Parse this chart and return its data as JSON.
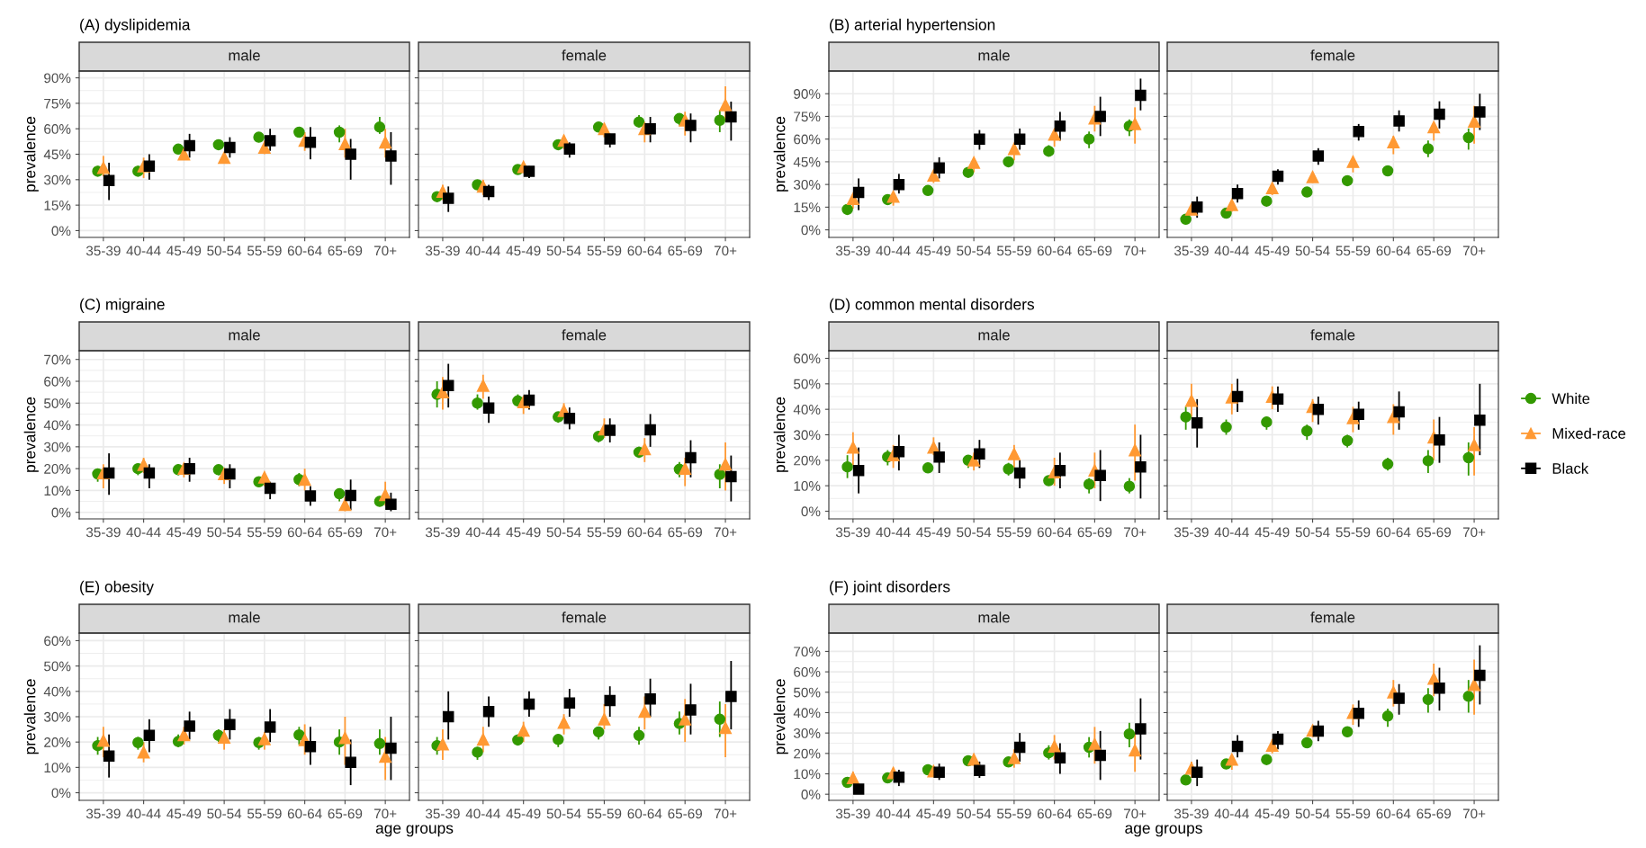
{
  "chart_data": [
    {
      "type": "scatter",
      "title": "(A) dyslipidemia",
      "subtitle": "male",
      "ylabel": "prevalence",
      "categories": [
        "35-39",
        "40-44",
        "45-49",
        "50-54",
        "55-59",
        "60-64",
        "65-69",
        "70+"
      ],
      "ylim": [
        -4,
        94
      ],
      "yticks": [
        {
          "value": 0,
          "label": "0%"
        },
        {
          "value": 15,
          "label": "15%"
        },
        {
          "value": 30,
          "label": "30%"
        },
        {
          "value": 45,
          "label": "45%"
        },
        {
          "value": 60,
          "label": "60%"
        },
        {
          "value": 75,
          "label": "75%"
        },
        {
          "value": 90,
          "label": "90%"
        }
      ],
      "grid": true,
      "series": [
        {
          "color": "#339900",
          "marker": "circle",
          "values": [
            35,
            35,
            48,
            50.6,
            55,
            58,
            58,
            61
          ],
          "errors": [
            [
              33,
              38
            ],
            [
              33,
              38
            ],
            [
              46,
              50
            ],
            [
              48,
              53
            ],
            [
              53,
              57
            ],
            [
              55,
              61
            ],
            [
              52,
              62
            ],
            [
              57,
              67
            ]
          ]
        },
        {
          "color": "#ff9933",
          "marker": "triangle",
          "values": [
            37,
            38,
            45,
            43,
            49,
            53,
            51,
            52
          ],
          "errors": [
            [
              32,
              44
            ],
            [
              31,
              43
            ],
            [
              42,
              48
            ],
            [
              40,
              46
            ],
            [
              45,
              53
            ],
            [
              47,
              58
            ],
            [
              43,
              60
            ],
            [
              43,
              60
            ]
          ]
        },
        {
          "color": "#000000",
          "marker": "square",
          "values": [
            29.5,
            38,
            50,
            49,
            53,
            52,
            45,
            44
          ],
          "errors": [
            [
              18,
              40
            ],
            [
              30,
              45
            ],
            [
              43,
              57
            ],
            [
              43,
              55
            ],
            [
              47,
              60
            ],
            [
              42,
              61
            ],
            [
              30,
              54
            ],
            [
              27,
              58
            ]
          ]
        }
      ]
    },
    {
      "type": "scatter",
      "subtitle": "female",
      "categories": [
        "35-39",
        "40-44",
        "45-49",
        "50-54",
        "55-59",
        "60-64",
        "65-69",
        "70+"
      ],
      "ylim": [
        -4,
        94
      ],
      "yticks": [
        {
          "value": 0,
          "label": null
        },
        {
          "value": 15,
          "label": null
        },
        {
          "value": 30,
          "label": null
        },
        {
          "value": 45,
          "label": null
        },
        {
          "value": 60,
          "label": null
        },
        {
          "value": 75,
          "label": null
        },
        {
          "value": 90,
          "label": null
        }
      ],
      "tick_labels": "x",
      "grid": true,
      "series": [
        {
          "color": "#339900",
          "marker": "circle",
          "values": [
            20,
            27,
            36,
            50.6,
            61,
            64,
            66,
            65
          ],
          "errors": [
            [
              17,
              22
            ],
            [
              25,
              29
            ],
            [
              34,
              38
            ],
            [
              48,
              53
            ],
            [
              59,
              63
            ],
            [
              61,
              68
            ],
            [
              62,
              69
            ],
            [
              58,
              71
            ]
          ]
        },
        {
          "color": "#ff9933",
          "marker": "triangle",
          "values": [
            23,
            26,
            37.6,
            53,
            60,
            60,
            65,
            74
          ],
          "errors": [
            [
              18,
              27
            ],
            [
              21,
              30
            ],
            [
              34,
              40
            ],
            [
              48,
              56
            ],
            [
              55,
              63
            ],
            [
              52,
              64
            ],
            [
              56,
              70
            ],
            [
              65,
              85
            ]
          ]
        },
        {
          "color": "#000000",
          "marker": "square",
          "values": [
            19,
            23,
            35,
            48,
            54,
            60,
            62,
            67
          ],
          "errors": [
            [
              11,
              26
            ],
            [
              18,
              27
            ],
            [
              31,
              38
            ],
            [
              43,
              52
            ],
            [
              49,
              57
            ],
            [
              52,
              67
            ],
            [
              52,
              69
            ],
            [
              53,
              76
            ]
          ]
        }
      ]
    },
    {
      "type": "scatter",
      "title": "(B) arterial hypertension",
      "subtitle": "male",
      "ylabel": "prevalence",
      "categories": [
        "35-39",
        "40-44",
        "45-49",
        "50-54",
        "55-59",
        "60-64",
        "65-69",
        "70+"
      ],
      "ylim": [
        -5,
        105
      ],
      "yticks": [
        {
          "value": 0,
          "label": "0%"
        },
        {
          "value": 15,
          "label": "15%"
        },
        {
          "value": 30,
          "label": "30%"
        },
        {
          "value": 45,
          "label": "45%"
        },
        {
          "value": 60,
          "label": "60%"
        },
        {
          "value": 75,
          "label": "75%"
        },
        {
          "value": 90,
          "label": "90%"
        }
      ],
      "grid": true,
      "series": [
        {
          "color": "#339900",
          "marker": "circle",
          "values": [
            13.5,
            20,
            26,
            38,
            45,
            52,
            60,
            68.6
          ],
          "errors": [
            [
              11,
              16
            ],
            [
              18,
              22
            ],
            [
              24,
              28
            ],
            [
              36,
              40
            ],
            [
              42,
              48
            ],
            [
              49,
              56
            ],
            [
              54,
              65
            ],
            [
              62,
              73
            ]
          ]
        },
        {
          "color": "#ff9933",
          "marker": "triangle",
          "values": [
            20.5,
            22,
            36,
            44.5,
            53.6,
            63,
            73.7,
            70
          ],
          "errors": [
            [
              14,
              24
            ],
            [
              16,
              24
            ],
            [
              31,
              39
            ],
            [
              38,
              47
            ],
            [
              46,
              56
            ],
            [
              55,
              66
            ],
            [
              65,
              82
            ],
            [
              57,
              81
            ]
          ]
        },
        {
          "color": "#000000",
          "marker": "square",
          "values": [
            24.7,
            30,
            41,
            60,
            60,
            68.6,
            75,
            89
          ],
          "errors": [
            [
              13,
              34
            ],
            [
              24,
              37
            ],
            [
              34,
              48
            ],
            [
              53,
              66
            ],
            [
              53,
              67
            ],
            [
              59,
              78
            ],
            [
              62,
              88
            ],
            [
              79,
              100
            ]
          ]
        }
      ]
    },
    {
      "type": "scatter",
      "subtitle": "female",
      "categories": [
        "35-39",
        "40-44",
        "45-49",
        "50-54",
        "55-59",
        "60-64",
        "65-69",
        "70+"
      ],
      "ylim": [
        -5,
        105
      ],
      "yticks": [
        {
          "value": 0,
          "label": null
        },
        {
          "value": 15,
          "label": null
        },
        {
          "value": 30,
          "label": null
        },
        {
          "value": 45,
          "label": null
        },
        {
          "value": 60,
          "label": null
        },
        {
          "value": 75,
          "label": null
        },
        {
          "value": 90,
          "label": null
        }
      ],
      "tick_labels": "x",
      "grid": true,
      "series": [
        {
          "color": "#339900",
          "marker": "circle",
          "values": [
            7,
            11,
            19,
            25,
            32.5,
            39,
            53.6,
            61
          ],
          "errors": [
            [
              7,
              8
            ],
            [
              11,
              12
            ],
            [
              17,
              21
            ],
            [
              23,
              27
            ],
            [
              30,
              35
            ],
            [
              36,
              42
            ],
            [
              48,
              59
            ],
            [
              53,
              67
            ]
          ]
        },
        {
          "color": "#ff9933",
          "marker": "triangle",
          "values": [
            13.5,
            16.5,
            27.7,
            35,
            45,
            58,
            68,
            71.6
          ],
          "errors": [
            [
              10,
              16
            ],
            [
              12,
              19
            ],
            [
              23,
              30
            ],
            [
              31,
              37
            ],
            [
              38,
              47
            ],
            [
              50,
              62
            ],
            [
              59,
              71
            ],
            [
              57,
              82
            ]
          ]
        },
        {
          "color": "#000000",
          "marker": "square",
          "values": [
            15,
            24,
            35.5,
            48.8,
            65,
            72,
            76.5,
            78
          ],
          "errors": [
            [
              8,
              22
            ],
            [
              18,
              30
            ],
            [
              30,
              40
            ],
            [
              43,
              54
            ],
            [
              59,
              70
            ],
            [
              65,
              79
            ],
            [
              67,
              85
            ],
            [
              66,
              90
            ]
          ]
        }
      ]
    },
    {
      "type": "scatter",
      "title": "(C) migraine",
      "subtitle": "male",
      "ylabel": "prevalence",
      "categories": [
        "35-39",
        "40-44",
        "45-49",
        "50-54",
        "55-59",
        "60-64",
        "65-69",
        "70+"
      ],
      "ylim": [
        -3,
        74
      ],
      "yticks": [
        {
          "value": 0,
          "label": "0%"
        },
        {
          "value": 10,
          "label": "10%"
        },
        {
          "value": 20,
          "label": "20%"
        },
        {
          "value": 30,
          "label": "30%"
        },
        {
          "value": 40,
          "label": "40%"
        },
        {
          "value": 50,
          "label": "50%"
        },
        {
          "value": 60,
          "label": "60%"
        },
        {
          "value": 70,
          "label": "70%"
        }
      ],
      "grid": true,
      "series": [
        {
          "color": "#339900",
          "marker": "circle",
          "values": [
            17.6,
            20,
            19.5,
            19.5,
            14,
            15,
            8.5,
            5
          ],
          "errors": [
            [
              14,
              20
            ],
            [
              17,
              22
            ],
            [
              17,
              22
            ],
            [
              17,
              21
            ],
            [
              12,
              16
            ],
            [
              12,
              18
            ],
            [
              5,
              11
            ],
            [
              3,
              6
            ]
          ]
        },
        {
          "color": "#ff9933",
          "marker": "triangle",
          "values": [
            18,
            21.8,
            20,
            17.6,
            16,
            15,
            3.5,
            8
          ],
          "errors": [
            [
              11,
              22
            ],
            [
              18,
              25
            ],
            [
              16,
              22
            ],
            [
              13,
              20
            ],
            [
              12,
              18
            ],
            [
              10,
              20
            ],
            [
              0.5,
              7
            ],
            [
              3,
              14
            ]
          ]
        },
        {
          "color": "#000000",
          "marker": "square",
          "values": [
            18,
            18,
            20,
            17.6,
            11,
            7.5,
            7.7,
            3.7
          ],
          "errors": [
            [
              8,
              27
            ],
            [
              11,
              22
            ],
            [
              14,
              25
            ],
            [
              11,
              22
            ],
            [
              6,
              14
            ],
            [
              3,
              12
            ],
            [
              1,
              15
            ],
            [
              0.5,
              9
            ]
          ]
        }
      ]
    },
    {
      "type": "scatter",
      "subtitle": "female",
      "categories": [
        "35-39",
        "40-44",
        "45-49",
        "50-54",
        "55-59",
        "60-64",
        "65-69",
        "70+"
      ],
      "ylim": [
        -3,
        74
      ],
      "yticks": [
        {
          "value": 0,
          "label": null
        },
        {
          "value": 10,
          "label": null
        },
        {
          "value": 20,
          "label": null
        },
        {
          "value": 30,
          "label": null
        },
        {
          "value": 40,
          "label": null
        },
        {
          "value": 50,
          "label": null
        },
        {
          "value": 60,
          "label": null
        },
        {
          "value": 70,
          "label": null
        }
      ],
      "tick_labels": "x",
      "grid": true,
      "series": [
        {
          "color": "#339900",
          "marker": "circle",
          "values": [
            54,
            50,
            51,
            43.7,
            34.8,
            27.5,
            19.7,
            17.4
          ],
          "errors": [
            [
              48,
              60
            ],
            [
              47,
              54
            ],
            [
              49,
              54
            ],
            [
              41,
              46
            ],
            [
              32,
              37
            ],
            [
              25,
              30
            ],
            [
              16,
              23
            ],
            [
              11,
              22
            ]
          ]
        },
        {
          "color": "#ff9933",
          "marker": "triangle",
          "values": [
            55,
            58,
            50.5,
            46.5,
            38,
            29,
            20,
            22
          ],
          "errors": [
            [
              47,
              62
            ],
            [
              52,
              63
            ],
            [
              45,
              53
            ],
            [
              43,
              50
            ],
            [
              34,
              43
            ],
            [
              23,
              34
            ],
            [
              12,
              25
            ],
            [
              10,
              32
            ]
          ]
        },
        {
          "color": "#000000",
          "marker": "square",
          "values": [
            58,
            47.7,
            51.4,
            43,
            37.6,
            37.8,
            25,
            16.4
          ],
          "errors": [
            [
              48,
              68
            ],
            [
              41,
              53
            ],
            [
              47,
              56
            ],
            [
              38,
              48
            ],
            [
              32,
              43
            ],
            [
              30,
              45
            ],
            [
              16,
              33
            ],
            [
              5,
              26
            ]
          ]
        }
      ]
    },
    {
      "type": "scatter",
      "title": "(D) common mental disorders",
      "subtitle": "male",
      "ylabel": "prevalence",
      "categories": [
        "35-39",
        "40-44",
        "45-49",
        "50-54",
        "55-59",
        "60-64",
        "65-69",
        "70+"
      ],
      "ylim": [
        -3,
        63
      ],
      "yticks": [
        {
          "value": 0,
          "label": "0%"
        },
        {
          "value": 10,
          "label": "10%"
        },
        {
          "value": 20,
          "label": "20%"
        },
        {
          "value": 30,
          "label": "30%"
        },
        {
          "value": 40,
          "label": "40%"
        },
        {
          "value": 50,
          "label": "50%"
        },
        {
          "value": 60,
          "label": "60%"
        }
      ],
      "grid": true,
      "series": [
        {
          "color": "#339900",
          "marker": "circle",
          "values": [
            17.4,
            21.3,
            17,
            20,
            16.6,
            12,
            10.6,
            9.8
          ],
          "errors": [
            [
              13,
              22
            ],
            [
              18,
              24
            ],
            [
              15,
              19
            ],
            [
              17,
              22
            ],
            [
              14,
              19
            ],
            [
              10,
              14
            ],
            [
              7,
              13
            ],
            [
              7,
              13
            ]
          ]
        },
        {
          "color": "#ff9933",
          "marker": "triangle",
          "values": [
            25,
            22,
            25,
            20,
            22.5,
            15.3,
            16,
            24
          ],
          "errors": [
            [
              18,
              31
            ],
            [
              17,
              26
            ],
            [
              22,
              29
            ],
            [
              16,
              23
            ],
            [
              17,
              26
            ],
            [
              10,
              21
            ],
            [
              9,
              23
            ],
            [
              12,
              34
            ]
          ]
        },
        {
          "color": "#000000",
          "marker": "square",
          "values": [
            16,
            23.4,
            21.3,
            22.5,
            15,
            16,
            14,
            17.4
          ],
          "errors": [
            [
              7,
              25
            ],
            [
              16,
              30
            ],
            [
              15,
              27
            ],
            [
              17,
              28
            ],
            [
              9,
              20
            ],
            [
              9,
              23
            ],
            [
              4,
              24
            ],
            [
              5,
              30
            ]
          ]
        }
      ]
    },
    {
      "type": "scatter",
      "subtitle": "female",
      "categories": [
        "35-39",
        "40-44",
        "45-49",
        "50-54",
        "55-59",
        "60-64",
        "65-69",
        "70+"
      ],
      "ylim": [
        -3,
        63
      ],
      "yticks": [
        {
          "value": 0,
          "label": null
        },
        {
          "value": 10,
          "label": null
        },
        {
          "value": 20,
          "label": null
        },
        {
          "value": 30,
          "label": null
        },
        {
          "value": 40,
          "label": null
        },
        {
          "value": 50,
          "label": null
        },
        {
          "value": 60,
          "label": null
        }
      ],
      "tick_labels": "x",
      "grid": true,
      "legend": "right",
      "series": [
        {
          "name": "White",
          "color": "#339900",
          "marker": "circle",
          "values": [
            37,
            33,
            35,
            31.5,
            27.7,
            18.5,
            19.8,
            21
          ],
          "errors": [
            [
              32,
              41
            ],
            [
              30,
              36
            ],
            [
              32,
              37
            ],
            [
              28,
              34
            ],
            [
              25,
              30
            ],
            [
              16,
              21
            ],
            [
              15,
              24
            ],
            [
              14,
              27
            ]
          ]
        },
        {
          "name": "Mixed-race",
          "color": "#ff9933",
          "marker": "triangle",
          "values": [
            43.4,
            44.7,
            45,
            41,
            36.6,
            37,
            29,
            26
          ],
          "errors": [
            [
              37,
              50
            ],
            [
              38,
              50
            ],
            [
              40,
              49
            ],
            [
              35,
              44
            ],
            [
              31,
              41
            ],
            [
              30,
              42
            ],
            [
              20,
              36
            ],
            [
              14,
              33
            ]
          ]
        },
        {
          "name": "Black",
          "color": "#000000",
          "marker": "square",
          "values": [
            34.7,
            45,
            44,
            40,
            38,
            39,
            28,
            35.7
          ],
          "errors": [
            [
              25,
              44
            ],
            [
              39,
              52
            ],
            [
              39,
              49
            ],
            [
              34,
              45
            ],
            [
              32,
              43
            ],
            [
              32,
              47
            ],
            [
              19,
              37
            ],
            [
              22,
              50
            ]
          ]
        }
      ]
    },
    {
      "type": "scatter",
      "title": "(E) obesity",
      "subtitle": "male",
      "ylabel": "prevalence",
      "xlabel": "age groups",
      "categories": [
        "35-39",
        "40-44",
        "45-49",
        "50-54",
        "55-59",
        "60-64",
        "65-69",
        "70+"
      ],
      "ylim": [
        -3,
        63
      ],
      "yticks": [
        {
          "value": 0,
          "label": "0%"
        },
        {
          "value": 10,
          "label": "10%"
        },
        {
          "value": 20,
          "label": "20%"
        },
        {
          "value": 30,
          "label": "30%"
        },
        {
          "value": 40,
          "label": "40%"
        },
        {
          "value": 50,
          "label": "50%"
        },
        {
          "value": 60,
          "label": "60%"
        }
      ],
      "grid": true,
      "series": [
        {
          "color": "#339900",
          "marker": "circle",
          "values": [
            18.6,
            19.8,
            20.2,
            22.6,
            19.8,
            22.8,
            20,
            19.4
          ],
          "errors": [
            [
              15,
              22
            ],
            [
              17,
              22
            ],
            [
              18,
              23
            ],
            [
              20,
              25
            ],
            [
              17,
              22
            ],
            [
              19,
              26
            ],
            [
              15,
              25
            ],
            [
              15,
              25
            ]
          ]
        },
        {
          "color": "#ff9933",
          "marker": "triangle",
          "values": [
            20.6,
            16,
            22.8,
            21.8,
            21.2,
            20.8,
            21.6,
            14.3
          ],
          "errors": [
            [
              14,
              26
            ],
            [
              12,
              20
            ],
            [
              19,
              26
            ],
            [
              17,
              25
            ],
            [
              17,
              24
            ],
            [
              15,
              27
            ],
            [
              11,
              30
            ],
            [
              5,
              22
            ]
          ]
        },
        {
          "color": "#000000",
          "marker": "square",
          "values": [
            14.5,
            22.6,
            26.3,
            26.9,
            25.9,
            18.2,
            12,
            17.6
          ],
          "errors": [
            [
              6,
              23
            ],
            [
              16,
              29
            ],
            [
              21,
              32
            ],
            [
              21,
              33
            ],
            [
              20,
              33
            ],
            [
              11,
              26
            ],
            [
              3,
              21
            ],
            [
              5,
              30
            ]
          ]
        }
      ]
    },
    {
      "type": "scatter",
      "subtitle": "female",
      "categories": [
        "35-39",
        "40-44",
        "45-49",
        "50-54",
        "55-59",
        "60-64",
        "65-69",
        "70+"
      ],
      "ylim": [
        -3,
        63
      ],
      "yticks": [
        {
          "value": 0,
          "label": null
        },
        {
          "value": 10,
          "label": null
        },
        {
          "value": 20,
          "label": null
        },
        {
          "value": 30,
          "label": null
        },
        {
          "value": 40,
          "label": null
        },
        {
          "value": 50,
          "label": null
        },
        {
          "value": 60,
          "label": null
        }
      ],
      "tick_labels": "x",
      "grid": true,
      "series": [
        {
          "color": "#339900",
          "marker": "circle",
          "values": [
            18.6,
            16,
            20.8,
            21,
            24,
            22.6,
            27.3,
            29
          ],
          "errors": [
            [
              15,
              22
            ],
            [
              13,
              18
            ],
            [
              19,
              23
            ],
            [
              18,
              23
            ],
            [
              21,
              26
            ],
            [
              19,
              26
            ],
            [
              23,
              32
            ],
            [
              22,
              36
            ]
          ]
        },
        {
          "color": "#ff9933",
          "marker": "triangle",
          "values": [
            19.2,
            21,
            24.6,
            27.7,
            29,
            32,
            29,
            25.6
          ],
          "errors": [
            [
              13,
              25
            ],
            [
              16,
              26
            ],
            [
              20,
              28
            ],
            [
              23,
              31
            ],
            [
              25,
              35
            ],
            [
              25,
              38
            ],
            [
              20,
              37
            ],
            [
              14,
              35
            ]
          ]
        },
        {
          "color": "#000000",
          "marker": "square",
          "values": [
            30,
            32,
            35,
            35.4,
            36.4,
            37,
            32.7,
            38
          ],
          "errors": [
            [
              21,
              40
            ],
            [
              26,
              38
            ],
            [
              30,
              40
            ],
            [
              30,
              41
            ],
            [
              30,
              42
            ],
            [
              30,
              45
            ],
            [
              23,
              43
            ],
            [
              25,
              52
            ]
          ]
        }
      ]
    },
    {
      "type": "scatter",
      "title": "(F) joint disorders",
      "subtitle": "male",
      "ylabel": "prevalence",
      "xlabel": "age groups",
      "categories": [
        "35-39",
        "40-44",
        "45-49",
        "50-54",
        "55-59",
        "60-64",
        "65-69",
        "70+"
      ],
      "ylim": [
        -3,
        79
      ],
      "yticks": [
        {
          "value": 0,
          "label": "0%"
        },
        {
          "value": 10,
          "label": "10%"
        },
        {
          "value": 20,
          "label": "20%"
        },
        {
          "value": 30,
          "label": "30%"
        },
        {
          "value": 40,
          "label": "40%"
        },
        {
          "value": 50,
          "label": "50%"
        },
        {
          "value": 60,
          "label": "60%"
        },
        {
          "value": 70,
          "label": "70%"
        }
      ],
      "grid": true,
      "series": [
        {
          "color": "#339900",
          "marker": "circle",
          "values": [
            5.8,
            8,
            12,
            16.4,
            15.8,
            20.3,
            23,
            29.5
          ],
          "errors": [
            [
              4,
              8
            ],
            [
              7,
              10
            ],
            [
              11,
              14
            ],
            [
              15,
              18
            ],
            [
              14,
              18
            ],
            [
              17,
              24
            ],
            [
              18,
              28
            ],
            [
              23,
              35
            ]
          ]
        },
        {
          "color": "#ff9933",
          "marker": "triangle",
          "values": [
            8,
            10.4,
            11.3,
            17,
            17.8,
            23.4,
            24.5,
            21.6
          ],
          "errors": [
            [
              5,
              11
            ],
            [
              8,
              13
            ],
            [
              9,
              13
            ],
            [
              14,
              20
            ],
            [
              13,
              22
            ],
            [
              17,
              29
            ],
            [
              15,
              33
            ],
            [
              11,
              30
            ]
          ]
        },
        {
          "color": "#000000",
          "marker": "square",
          "values": [
            2.5,
            8.3,
            10.8,
            11.7,
            23,
            17.8,
            19,
            32
          ],
          "errors": [
            [
              1,
              5
            ],
            [
              4,
              12
            ],
            [
              7,
              15
            ],
            [
              8,
              16
            ],
            [
              16,
              30
            ],
            [
              10,
              25
            ],
            [
              7,
              31
            ],
            [
              17,
              47
            ]
          ]
        }
      ]
    },
    {
      "type": "scatter",
      "subtitle": "female",
      "categories": [
        "35-39",
        "40-44",
        "45-49",
        "50-54",
        "55-59",
        "60-64",
        "65-69",
        "70+"
      ],
      "ylim": [
        -3,
        79
      ],
      "yticks": [
        {
          "value": 0,
          "label": null
        },
        {
          "value": 10,
          "label": null
        },
        {
          "value": 20,
          "label": null
        },
        {
          "value": 30,
          "label": null
        },
        {
          "value": 40,
          "label": null
        },
        {
          "value": 50,
          "label": null
        },
        {
          "value": 60,
          "label": null
        },
        {
          "value": 70,
          "label": null
        }
      ],
      "tick_labels": "x",
      "grid": true,
      "series": [
        {
          "color": "#339900",
          "marker": "circle",
          "values": [
            7,
            14.8,
            17,
            25.2,
            30.6,
            38.3,
            46.4,
            48
          ],
          "errors": [
            [
              5,
              9
            ],
            [
              13,
              17
            ],
            [
              16,
              18
            ],
            [
              23,
              27
            ],
            [
              28,
              33
            ],
            [
              33,
              42
            ],
            [
              40,
              52
            ],
            [
              40,
              56
            ]
          ]
        },
        {
          "color": "#ff9933",
          "marker": "triangle",
          "values": [
            12.6,
            17,
            23.9,
            31.3,
            40,
            50,
            56.7,
            53.6
          ],
          "errors": [
            [
              8,
              16
            ],
            [
              12,
              19
            ],
            [
              20,
              27
            ],
            [
              28,
              33
            ],
            [
              34,
              44
            ],
            [
              43,
              56
            ],
            [
              48,
              64
            ],
            [
              39,
              66
            ]
          ]
        },
        {
          "color": "#000000",
          "marker": "square",
          "values": [
            10.8,
            23.4,
            27,
            31,
            39.6,
            47,
            52,
            58.3
          ],
          "errors": [
            [
              4,
              17
            ],
            [
              18,
              29
            ],
            [
              22,
              31
            ],
            [
              26,
              36
            ],
            [
              33,
              46
            ],
            [
              39,
              54
            ],
            [
              41,
              62
            ],
            [
              44,
              73
            ]
          ]
        }
      ]
    }
  ]
}
